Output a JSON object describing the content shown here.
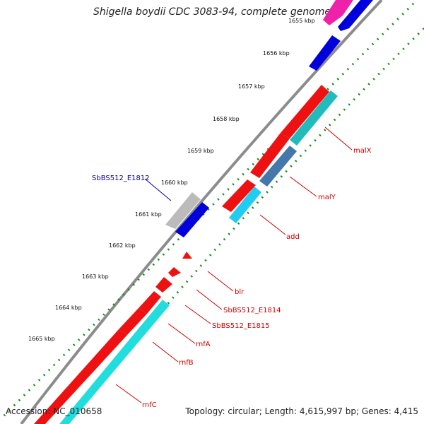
{
  "header": {
    "title": "Shigella boydii CDC 3083-94, complete genome"
  },
  "footer": {
    "accession": "Accession: NC_010658",
    "summary": "Topology: circular; Length: 4,615,997 bp; Genes: 4,415"
  },
  "scale": {
    "ticks": [
      "1655 kbp",
      "1656 kbp",
      "1657 kbp",
      "1658 kbp",
      "1659 kbp",
      "1660 kbp",
      "1661 kbp",
      "1662 kbp",
      "1663 kbp",
      "1664 kbp",
      "1665 kbp"
    ]
  },
  "genes": [
    {
      "label": "malX",
      "color": "#cc0000"
    },
    {
      "label": "malY",
      "color": "#cc0000"
    },
    {
      "label": "add",
      "color": "#cc0000"
    },
    {
      "label": "SbBS512_E1812",
      "color": "#000099"
    },
    {
      "label": "blr",
      "color": "#cc0000"
    },
    {
      "label": "SbBS512_E1814",
      "color": "#cc0000"
    },
    {
      "label": "SbBS512_E1815",
      "color": "#cc0000"
    },
    {
      "label": "rnfA",
      "color": "#cc0000"
    },
    {
      "label": "rnfB",
      "color": "#cc0000"
    },
    {
      "label": "rnfC",
      "color": "#cc0000"
    }
  ],
  "colors": {
    "backbone": "#8c8c8c",
    "forward_cds": "#0000dd",
    "reverse_cds": "#ee1111",
    "rna_track": "#22cccc",
    "hypothetical": "#bbbbbb",
    "other": "#ee22aa",
    "dots": "#1a8a1a"
  }
}
